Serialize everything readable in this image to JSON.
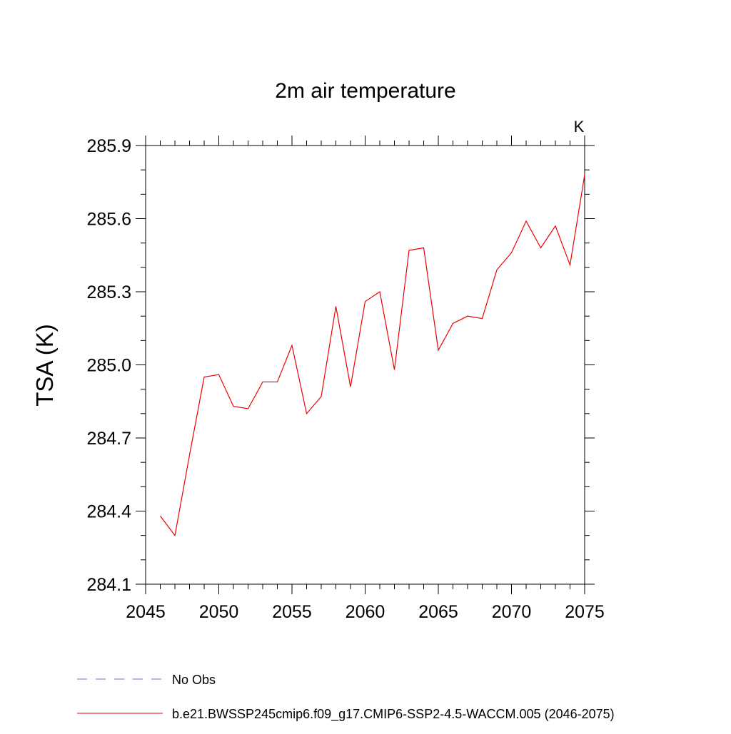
{
  "chart_data": {
    "type": "line",
    "title": "2m air temperature",
    "ylabel": "TSA  (K)",
    "units_label": "K",
    "xlabel": "",
    "xlim": [
      2045,
      2075
    ],
    "ylim": [
      284.1,
      285.9
    ],
    "x_ticks": [
      2045,
      2050,
      2055,
      2060,
      2065,
      2070,
      2075
    ],
    "x_tick_labels": [
      "2045",
      "2050",
      "2055",
      "2060",
      "2065",
      "2070",
      "2075"
    ],
    "y_ticks": [
      284.1,
      284.4,
      284.7,
      285.0,
      285.3,
      285.6,
      285.9
    ],
    "y_tick_labels": [
      "284.1",
      "284.4",
      "284.7",
      "285.0",
      "285.3",
      "285.6",
      "285.9"
    ],
    "grid": false,
    "legend_placement": "bottom-left",
    "legend": [
      {
        "label": "No Obs",
        "color": "#7a6fd0",
        "style": "dashed"
      },
      {
        "label": "b.e21.BWSSP245cmip6.f09_g17.CMIP6-SSP2-4.5-WACCM.005 (2046-2075)",
        "color": "#ee0000",
        "style": "solid"
      }
    ],
    "series": [
      {
        "name": "b.e21.BWSSP245cmip6.f09_g17.CMIP6-SSP2-4.5-WACCM.005 (2046-2075)",
        "color": "#ee0000",
        "x": [
          2046,
          2047,
          2048,
          2049,
          2050,
          2051,
          2052,
          2053,
          2054,
          2055,
          2056,
          2057,
          2058,
          2059,
          2060,
          2061,
          2062,
          2063,
          2064,
          2065,
          2066,
          2067,
          2068,
          2069,
          2070,
          2071,
          2072,
          2073,
          2074,
          2075
        ],
        "values": [
          284.38,
          284.3,
          284.63,
          284.95,
          284.96,
          284.83,
          284.82,
          284.93,
          284.93,
          285.08,
          284.8,
          284.87,
          285.24,
          284.91,
          285.26,
          285.3,
          284.98,
          285.47,
          285.48,
          285.06,
          285.17,
          285.2,
          285.19,
          285.39,
          285.46,
          285.59,
          285.48,
          285.57,
          285.41,
          285.78
        ]
      }
    ]
  }
}
